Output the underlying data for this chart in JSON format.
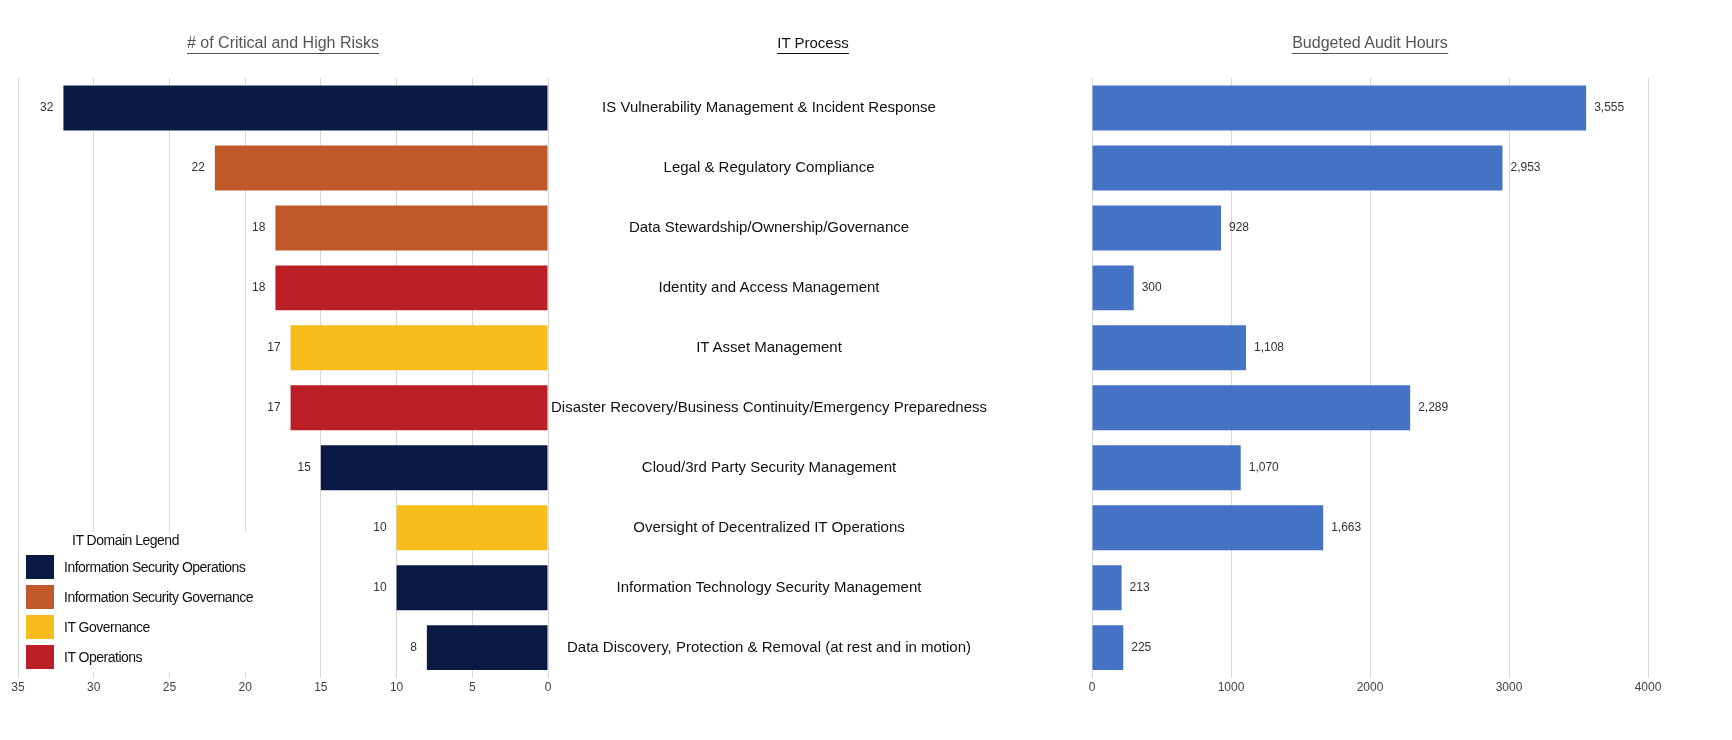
{
  "chart_data": [
    {
      "type": "bar",
      "title": "# of Critical and High Risks",
      "ylabel": "IT Process",
      "orientation": "horizontal",
      "stacked": true,
      "categories": [
        "IS Vulnerability Management & Incident Response",
        "Legal & Regulatory Compliance",
        "Data Stewardship/Ownership/Governance",
        "Identity and Access Management",
        "IT Asset Management",
        "Disaster Recovery/Business Continuity/Emergency Preparedness",
        "Cloud/3rd Party Security Management",
        "Oversight of Decentralized IT Operations",
        "Information Technology Security Management",
        "Data Discovery, Protection & Removal (at rest and in motion)"
      ],
      "series": [
        {
          "name": "Information Security Operations",
          "color": "#0b1a45",
          "values": [
            32,
            null,
            null,
            null,
            null,
            null,
            15,
            null,
            10,
            8
          ]
        },
        {
          "name": "Information Security Governance",
          "color": "#c0582a",
          "values": [
            null,
            22,
            18,
            null,
            null,
            null,
            null,
            null,
            null,
            null
          ]
        },
        {
          "name": "IT Governance",
          "color": "#f6bd1b",
          "values": [
            null,
            null,
            null,
            null,
            17,
            null,
            null,
            10,
            null,
            null
          ]
        },
        {
          "name": "IT Operations",
          "color": "#bb1e24",
          "values": [
            null,
            null,
            null,
            18,
            null,
            17,
            null,
            null,
            null,
            null
          ]
        }
      ],
      "xlim": [
        35,
        0
      ],
      "xticks": [
        35,
        30,
        25,
        20,
        15,
        10,
        5,
        0
      ],
      "grid": "x",
      "legend": "bottom left",
      "legend_title": "IT Domain Legend",
      "data_labels": true
    },
    {
      "type": "bar",
      "title": "Budgeted Audit Hours",
      "orientation": "horizontal",
      "categories": [
        null,
        null,
        null,
        null,
        null,
        null,
        null,
        null,
        null,
        null
      ],
      "values": [
        3555,
        2953,
        928,
        300,
        1108,
        2289,
        1070,
        1663,
        213,
        225
      ],
      "color": "#4472c4",
      "value_labels": [
        "3,555",
        "2,953",
        "928",
        "300",
        "1,108",
        "2,289",
        "1,070",
        "1,663",
        "213",
        "225"
      ],
      "xlim": [
        0,
        4000
      ],
      "xticks": [
        0,
        1000,
        2000,
        3000,
        4000
      ],
      "grid": "x"
    }
  ]
}
